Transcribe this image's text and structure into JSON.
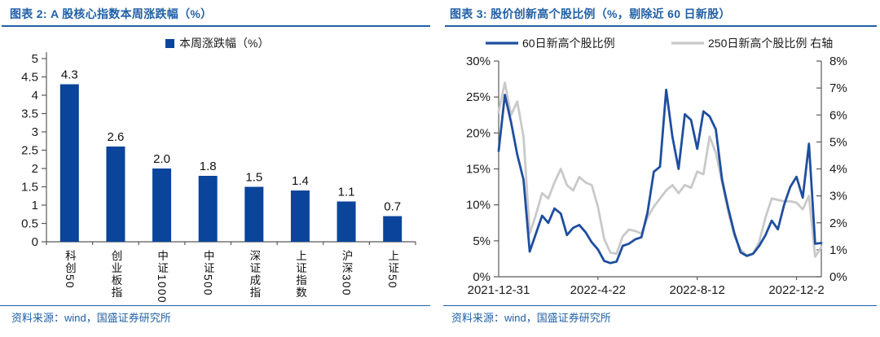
{
  "figures": [
    {
      "caption": "图表 2: A 股核心指数本周涨跌幅（%）",
      "source": "资料来源：wind，国盛证券研究所"
    },
    {
      "caption": "图表 3: 股价创新高个股比例（%，剔除近 60 日新股）",
      "source": "资料来源：wind，国盛证券研究所"
    }
  ],
  "colors": {
    "accent_blue": "#2160A7",
    "bar_blue": "#0A459B",
    "line_blue": "#1F4E9E",
    "line_gray": "#C9C9C9",
    "axis_gray": "#595959",
    "text_dark": "#1A1A1A"
  },
  "chart_data": [
    {
      "type": "bar",
      "legend": [
        "本周涨跌幅（%）"
      ],
      "categories": [
        "科创50",
        "创业板指",
        "中证1000",
        "中证500",
        "深证成指",
        "上证指数",
        "沪深300",
        "上证50"
      ],
      "values": [
        4.3,
        2.6,
        2.0,
        1.8,
        1.5,
        1.4,
        1.1,
        0.7
      ],
      "value_labels": [
        "4.3",
        "2.6",
        "2.0",
        "1.8",
        "1.5",
        "1.4",
        "1.1",
        "0.7"
      ],
      "ylim": [
        0,
        5
      ],
      "ytick_step": 0.5,
      "grid": false,
      "legend_position": "top"
    },
    {
      "type": "line",
      "n_points": 53,
      "x_tick_labels": [
        "2021-12-31",
        "2022-4-22",
        "2022-8-12",
        "2022-12-2"
      ],
      "x_tick_positions": [
        0,
        16,
        32,
        48
      ],
      "left_axis": {
        "min": 0,
        "max": 30,
        "step": 5,
        "suffix": "%"
      },
      "right_axis": {
        "min": 0,
        "max": 8,
        "step": 1,
        "suffix": "%"
      },
      "grid": false,
      "legend_position": "top",
      "series": [
        {
          "name": "60日新高个股比例",
          "axis": "left",
          "color": "#1F4E9E",
          "values": [
            17.5,
            25.3,
            21.5,
            17.0,
            13.5,
            3.5,
            6.0,
            8.5,
            7.5,
            9.5,
            8.8,
            5.8,
            6.8,
            7.2,
            6.2,
            4.8,
            3.8,
            2.2,
            1.9,
            2.1,
            4.3,
            4.6,
            5.2,
            5.5,
            9.0,
            14.6,
            15.3,
            26.0,
            19.5,
            15.0,
            22.6,
            21.8,
            17.8,
            23.0,
            22.3,
            20.5,
            13.5,
            9.5,
            6.0,
            3.4,
            2.9,
            3.2,
            4.3,
            5.8,
            7.8,
            6.6,
            10.0,
            12.5,
            13.9,
            11.0,
            18.5,
            4.6,
            4.7
          ]
        },
        {
          "name": "250日新高个股比例 右轴",
          "axis": "right",
          "color": "#C9C9C9",
          "values": [
            6.1,
            7.2,
            6.0,
            6.5,
            5.2,
            1.6,
            2.3,
            3.1,
            2.9,
            3.5,
            4.0,
            3.4,
            3.2,
            3.7,
            3.5,
            3.4,
            2.6,
            1.4,
            0.9,
            0.85,
            1.5,
            1.75,
            1.7,
            1.6,
            2.2,
            2.6,
            2.9,
            3.2,
            3.4,
            3.1,
            3.4,
            3.3,
            3.9,
            3.8,
            5.2,
            4.6,
            3.5,
            2.4,
            1.5,
            1.0,
            0.8,
            0.85,
            1.3,
            2.2,
            2.9,
            2.85,
            2.8,
            2.8,
            2.75,
            2.5,
            3.0,
            0.75,
            1.1
          ]
        }
      ]
    }
  ]
}
